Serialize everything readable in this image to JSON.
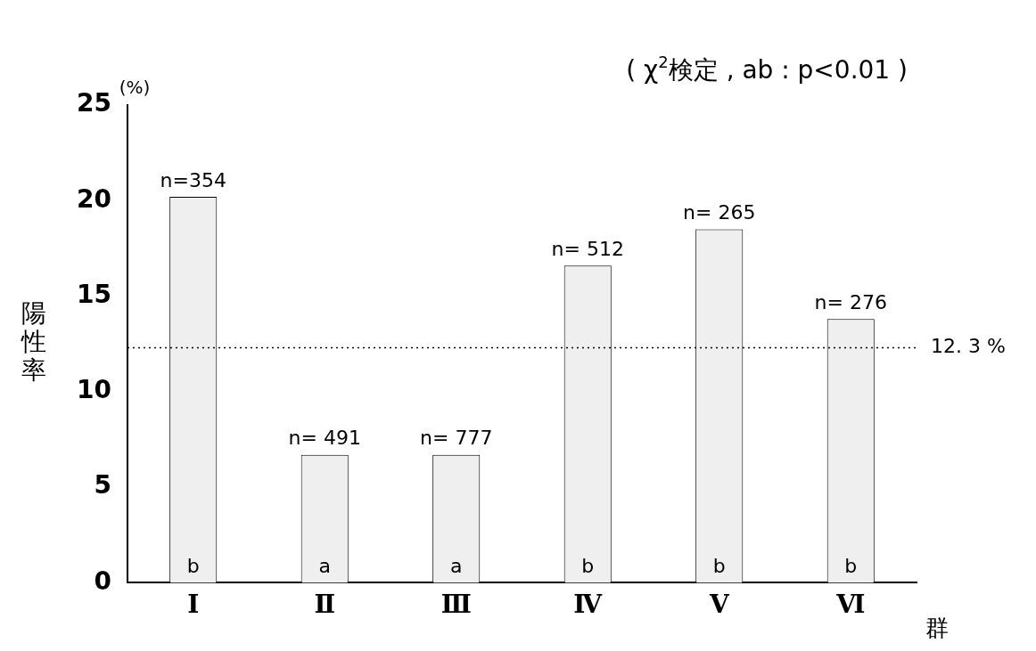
{
  "chart_data": {
    "type": "bar",
    "title": "( χ$^{2}$検定 , ab : p<0.01 )",
    "xlabel": "群",
    "ylabel": "陽性率",
    "categories": [
      "Ⅰ",
      "Ⅱ",
      "Ⅲ",
      "Ⅳ",
      "Ⅴ",
      "Ⅵ"
    ],
    "values": [
      20.2,
      6.7,
      6.7,
      16.6,
      18.5,
      13.8
    ],
    "color": "#efefef",
    "ylim": [
      0,
      25
    ],
    "yticks": [
      0,
      5,
      10,
      15,
      20,
      25
    ],
    "grid": false,
    "legend": false,
    "ref_lines": [
      {
        "axis": "y",
        "value": 12.3,
        "label": "12. 3 %",
        "line_style": "dotted",
        "color": "#000000"
      }
    ],
    "annotations": [
      "(%)",
      {
        "text": "n=354",
        "x": "Ⅰ",
        "y": 20.2
      },
      {
        "text": "n= 491",
        "x": "Ⅱ",
        "y": 6.7
      },
      {
        "text": "n= 777",
        "x": "Ⅲ",
        "y": 6.7
      },
      {
        "text": "n= 512",
        "x": "Ⅳ",
        "y": 16.6
      },
      {
        "text": "n= 265",
        "x": "Ⅴ",
        "y": 18.5
      },
      {
        "text": "n= 276",
        "x": "Ⅵ",
        "y": 13.8
      },
      {
        "text": "b",
        "x": "Ⅰ",
        "y": 0
      },
      {
        "text": "a",
        "x": "Ⅱ",
        "y": 0
      },
      {
        "text": "a",
        "x": "Ⅲ",
        "y": 0
      },
      {
        "text": "b",
        "x": "Ⅳ",
        "y": 0
      },
      {
        "text": "b",
        "x": "Ⅴ",
        "y": 0
      },
      {
        "text": "b",
        "x": "Ⅵ",
        "y": 0
      }
    ]
  }
}
